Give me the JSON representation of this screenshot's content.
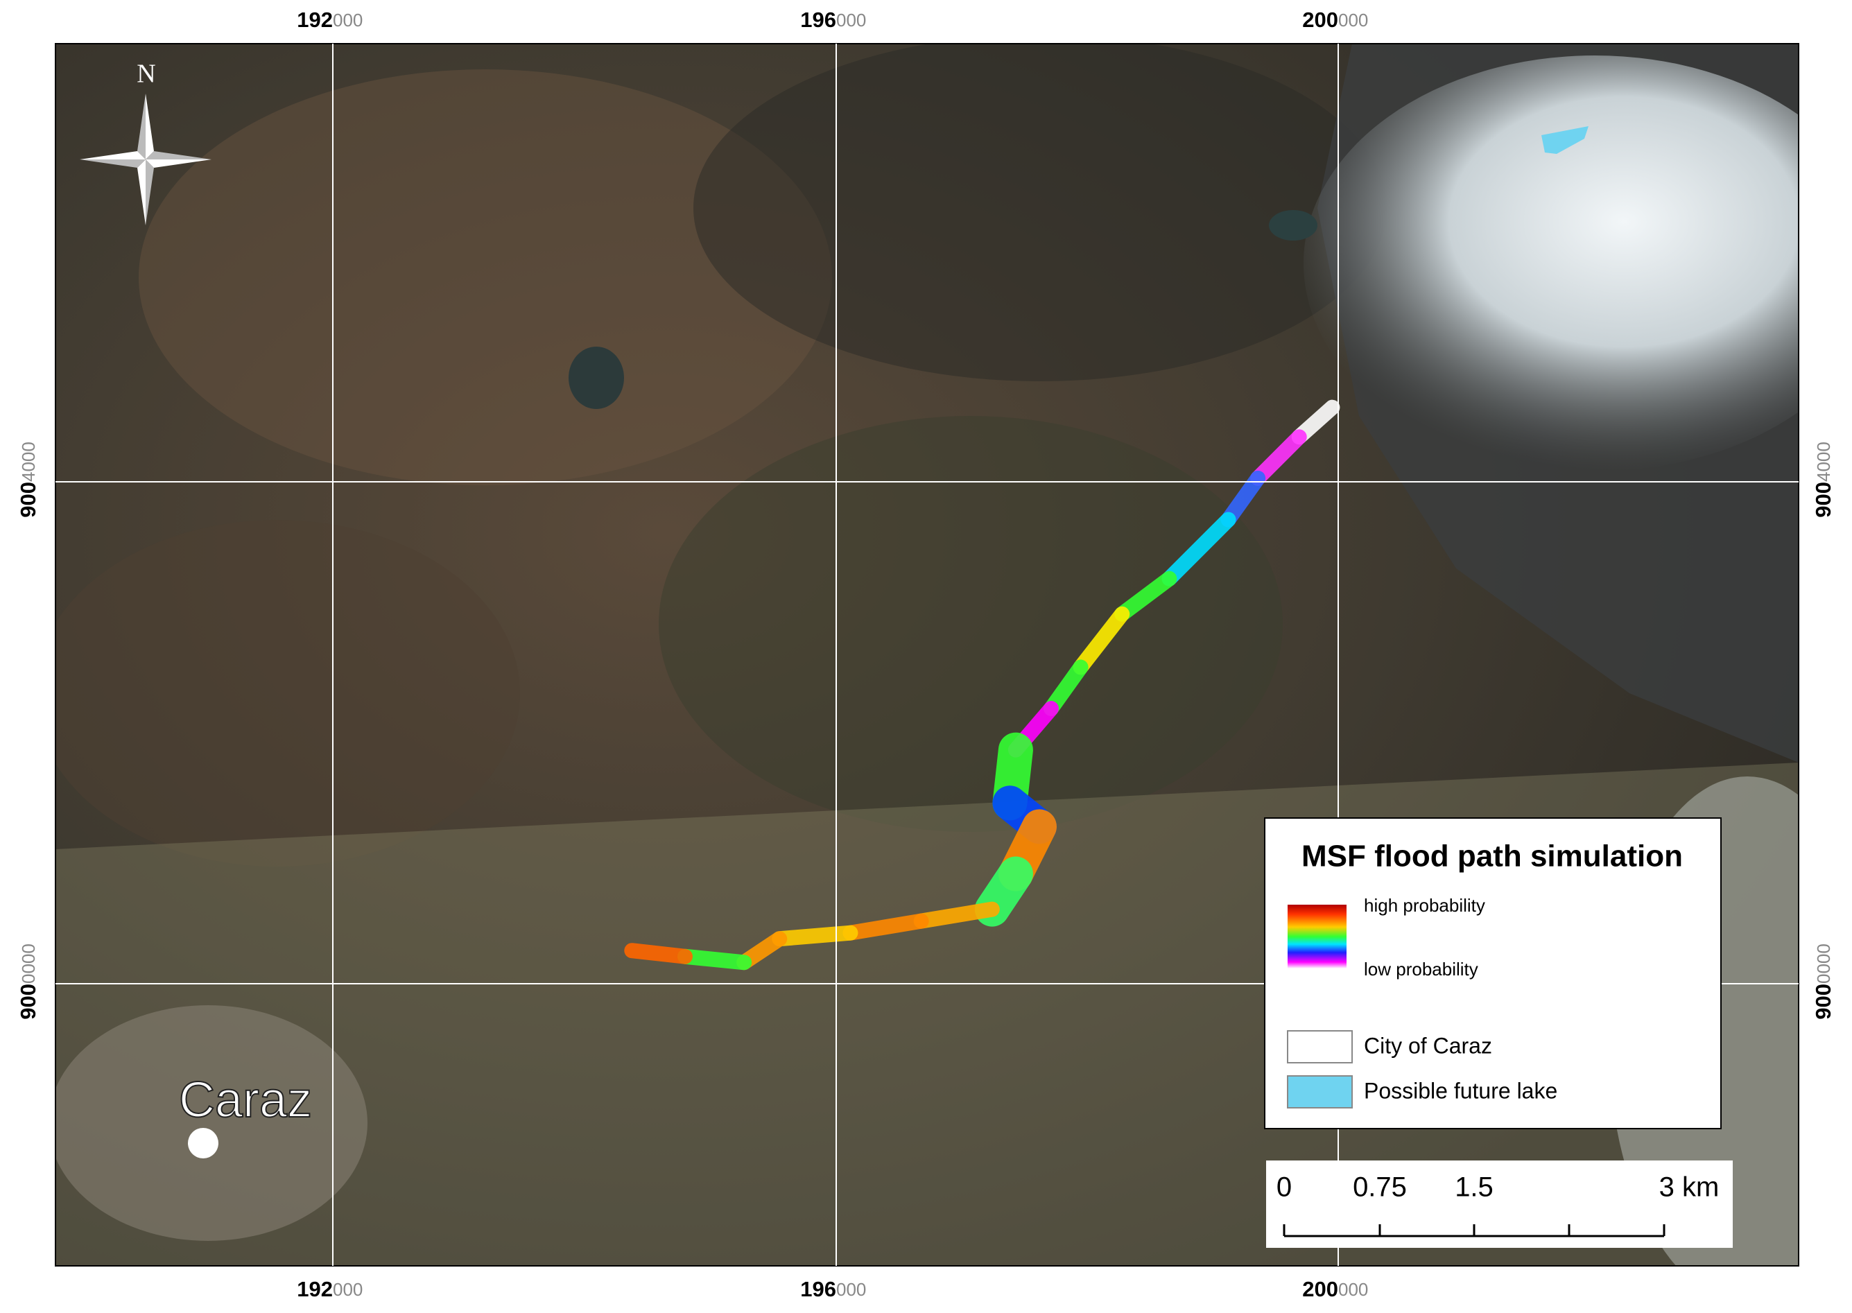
{
  "map": {
    "north": "N",
    "city_label": "Caraz",
    "x_labels": [
      {
        "major": "192",
        "minor": "000"
      },
      {
        "major": "196",
        "minor": "000"
      },
      {
        "major": "200",
        "minor": "000"
      }
    ],
    "y_labels": [
      {
        "major": "900",
        "minor": "4000"
      },
      {
        "major": "900",
        "minor": "0000"
      }
    ],
    "legend": {
      "title": "MSF flood path simulation",
      "high": "high probability",
      "low": "low probability",
      "items": [
        "City of Caraz",
        "Possible future lake"
      ]
    },
    "scale_bar": [
      "0",
      "0.75",
      "1.5",
      "3 km"
    ]
  }
}
